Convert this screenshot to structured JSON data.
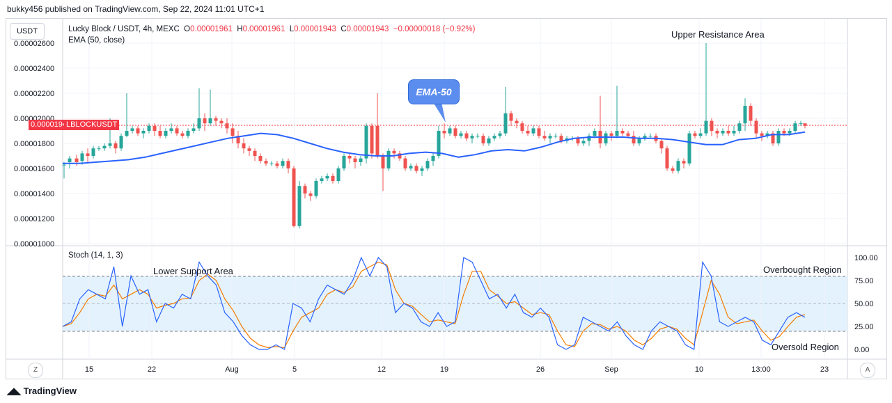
{
  "header": {
    "text": "bukky456 published on TradingView.com, Sep 22, 2024 11:01 UTC+1"
  },
  "currency_button": "USDT",
  "legend": {
    "symbol": "Lucky Block / USDT, 4h, MEXC",
    "o_label": "O",
    "o_value": "0.00001961",
    "h_label": "H",
    "h_value": "0.00001961",
    "l_label": "L",
    "l_value": "0.00001943",
    "c_label": "C",
    "c_value": "0.00001943",
    "change": "−0.00000018 (−0.92%)",
    "ema_line": "EMA (50, close)"
  },
  "price_label": "0.00001943",
  "ticker_label": "LBLOCKUSDT",
  "price_axis": [
    "0.00002600",
    "0.00002400",
    "0.00002200",
    "0.00002000",
    "0.00001800",
    "0.00001600",
    "0.00001400",
    "0.00001200",
    "0.00001000"
  ],
  "stoch_label": "Stoch (14, 1, 3)",
  "stoch_axis": [
    "100.00",
    "75.00",
    "50.00",
    "25.00",
    "0.00"
  ],
  "x_axis": [
    "15",
    "22",
    "Aug",
    "5",
    "12",
    "19",
    "26",
    "Sep",
    "10",
    "13:00",
    "23"
  ],
  "annotations": {
    "upper_resistance": "Upper Resistance Area",
    "lower_support": "Lower Support Area",
    "overbought": "Overbought Region",
    "oversold": "Oversold Region",
    "ema_bubble": "EMA-50"
  },
  "z_button": "Z",
  "a_button": "A",
  "footer": "TradingView",
  "colors": {
    "up": "#26a69a",
    "down": "#ef5350",
    "ema": "#2962ff",
    "stoch_k": "#2962ff",
    "stoch_d": "#f57c00",
    "band": "#e3f2fd",
    "price_tag": "#f23645"
  },
  "chart_data": [
    {
      "type": "candlestick",
      "title": "Lucky Block / USDT, 4h, MEXC",
      "ylim": [
        1e-05,
        2.6e-05
      ],
      "series": [
        {
          "name": "EMA (50, close)",
          "values": [
            1.64e-05,
            1.64e-05,
            1.65e-05,
            1.66e-05,
            1.67e-05,
            1.69e-05,
            1.72e-05,
            1.75e-05,
            1.78e-05,
            1.81e-05,
            1.84e-05,
            1.86e-05,
            1.88e-05,
            1.87e-05,
            1.84e-05,
            1.8e-05,
            1.76e-05,
            1.73e-05,
            1.71e-05,
            1.7e-05,
            1.7e-05,
            1.72e-05,
            1.73e-05,
            1.72e-05,
            1.69e-05,
            1.71e-05,
            1.74e-05,
            1.75e-05,
            1.74e-05,
            1.77e-05,
            1.81e-05,
            1.84e-05,
            1.85e-05,
            1.85e-05,
            1.85e-05,
            1.84e-05,
            1.84e-05,
            1.83e-05,
            1.81e-05,
            1.79e-05,
            1.79e-05,
            1.83e-05,
            1.84e-05,
            1.87e-05,
            1.87e-05,
            1.89e-05
          ]
        }
      ],
      "close_last": 1.943e-05
    },
    {
      "type": "line",
      "title": "Stoch (14, 1, 3)",
      "ylim": [
        0,
        100
      ],
      "levels": [
        80,
        50,
        20
      ],
      "series": [
        {
          "name": "K",
          "values": [
            25,
            30,
            55,
            65,
            60,
            55,
            90,
            25,
            80,
            60,
            65,
            30,
            50,
            45,
            60,
            55,
            95,
            80,
            70,
            40,
            30,
            15,
            5,
            0,
            0,
            5,
            0,
            50,
            45,
            30,
            55,
            70,
            65,
            60,
            75,
            100,
            80,
            100,
            90,
            40,
            50,
            45,
            30,
            25,
            40,
            25,
            30,
            100,
            95,
            75,
            55,
            60,
            45,
            60,
            40,
            35,
            45,
            35,
            5,
            0,
            5,
            35,
            30,
            25,
            20,
            30,
            15,
            5,
            0,
            20,
            30,
            25,
            20,
            5,
            0,
            95,
            80,
            30,
            25,
            30,
            35,
            30,
            10,
            5,
            20,
            35,
            40,
            35
          ]
        },
        {
          "name": "D",
          "values": [
            25,
            28,
            40,
            55,
            60,
            58,
            70,
            55,
            60,
            65,
            60,
            45,
            48,
            50,
            55,
            56,
            75,
            82,
            75,
            55,
            42,
            25,
            12,
            5,
            2,
            3,
            2,
            20,
            35,
            40,
            45,
            60,
            65,
            62,
            68,
            85,
            90,
            95,
            92,
            65,
            50,
            47,
            38,
            30,
            32,
            30,
            28,
            60,
            85,
            85,
            65,
            58,
            50,
            52,
            45,
            38,
            40,
            38,
            20,
            5,
            3,
            20,
            28,
            27,
            22,
            25,
            20,
            10,
            5,
            12,
            22,
            25,
            22,
            12,
            5,
            40,
            75,
            60,
            35,
            28,
            30,
            32,
            20,
            10,
            14,
            25,
            35,
            38
          ]
        }
      ]
    }
  ]
}
